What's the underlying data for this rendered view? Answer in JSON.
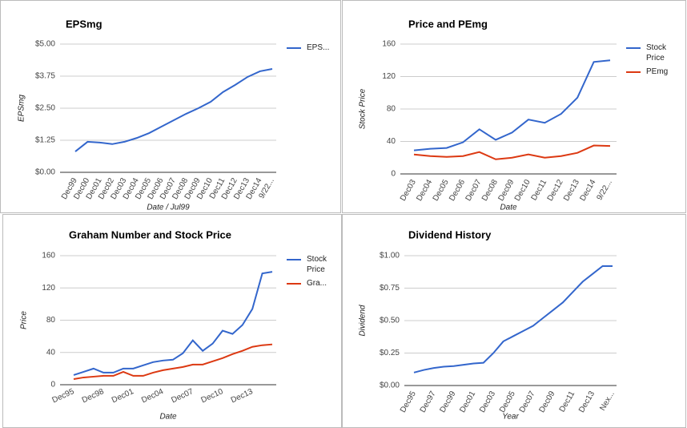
{
  "chart_data": [
    {
      "type": "line",
      "title": "EPSmg",
      "x_label": "Date / Jul99",
      "y_label": "EPSmg",
      "categories": [
        "Dec99",
        "Dec00",
        "Dec01",
        "Dec02",
        "Dec03",
        "Dec04",
        "Dec05",
        "Dec06",
        "Dec07",
        "Dec08",
        "Dec09",
        "Dec10",
        "Dec11",
        "Dec12",
        "Dec13",
        "Dec14",
        "9/22..."
      ],
      "series": [
        {
          "name": "EPS...",
          "color": "#3366cc",
          "values": [
            0.81,
            1.19,
            1.16,
            1.1,
            1.19,
            1.34,
            1.53,
            1.78,
            2.03,
            2.28,
            2.5,
            2.75,
            3.13,
            3.41,
            3.72,
            3.94,
            4.03
          ]
        }
      ],
      "ylim": [
        0,
        5
      ],
      "yticks": [
        {
          "value": 0,
          "label": "$0.00"
        },
        {
          "value": 1.25,
          "label": "$1.25"
        },
        {
          "value": 2.5,
          "label": "$2.50"
        },
        {
          "value": 3.75,
          "label": "$3.75"
        },
        {
          "value": 5,
          "label": "$5.00"
        }
      ],
      "grid": true
    },
    {
      "type": "line",
      "title": "Price and PEmg",
      "x_label": "Date",
      "y_label": "Stock Price",
      "categories": [
        "Dec03",
        "Dec04",
        "Dec05",
        "Dec06",
        "Dec07",
        "Dec08",
        "Dec09",
        "Dec10",
        "Dec11",
        "Dec12",
        "Dec13",
        "Dec14",
        "9/22..."
      ],
      "series": [
        {
          "name": "Stock Price",
          "color": "#3366cc",
          "values": [
            29,
            31,
            32,
            39,
            55,
            42,
            51,
            67,
            63,
            74,
            94,
            138,
            140
          ]
        },
        {
          "name": "PEmg",
          "color": "#dc3912",
          "values": [
            24,
            22,
            21,
            22,
            27,
            18,
            20,
            24,
            20,
            22,
            26,
            35,
            34.5
          ]
        }
      ],
      "ylim": [
        0,
        160
      ],
      "yticks": [
        0,
        40,
        80,
        120,
        160
      ],
      "grid": true
    },
    {
      "type": "line",
      "title": "Graham Number and Stock Price",
      "x_label": "Date",
      "y_label": "Price",
      "categories": [
        "Dec95",
        null,
        null,
        "Dec98",
        null,
        null,
        "Dec01",
        null,
        null,
        "Dec04",
        null,
        null,
        "Dec07",
        null,
        null,
        "Dec10",
        null,
        null,
        "Dec13",
        null,
        null
      ],
      "series": [
        {
          "name": "Stock Price",
          "color": "#3366cc",
          "values": [
            12,
            16,
            20,
            15,
            15,
            20,
            20,
            24,
            28,
            30,
            31,
            39,
            55,
            42,
            51,
            67,
            63,
            74,
            94,
            138,
            140
          ]
        },
        {
          "name": "Gra...",
          "color": "#dc3912",
          "values": [
            7,
            9,
            10,
            11,
            11,
            16,
            11,
            11,
            15,
            18,
            20,
            22,
            25,
            25,
            29,
            33,
            38,
            42,
            47,
            49,
            50
          ]
        }
      ],
      "ylim": [
        0,
        160
      ],
      "yticks": [
        0,
        40,
        80,
        120,
        160
      ],
      "grid": true
    },
    {
      "type": "line",
      "title": "Dividend History",
      "x_label": "Year",
      "y_label": "Dividend",
      "categories": [
        "Dec95",
        null,
        "Dec97",
        null,
        "Dec99",
        null,
        "Dec01",
        null,
        "Dec03",
        null,
        "Dec05",
        null,
        "Dec07",
        null,
        "Dec09",
        null,
        "Dec11",
        null,
        "Dec13",
        null,
        "Nex..."
      ],
      "series": [
        {
          "color": "#3366cc",
          "values": [
            0.1,
            0.12,
            0.135,
            0.145,
            0.15,
            0.16,
            0.17,
            0.175,
            0.25,
            0.34,
            0.38,
            0.42,
            0.46,
            0.52,
            0.58,
            0.64,
            0.72,
            0.8,
            0.86,
            0.92,
            0.92
          ]
        }
      ],
      "ylim": [
        0,
        1
      ],
      "yticks": [
        {
          "value": 0,
          "label": "$0.00"
        },
        {
          "value": 0.25,
          "label": "$0.25"
        },
        {
          "value": 0.5,
          "label": "$0.50"
        },
        {
          "value": 0.75,
          "label": "$0.75"
        },
        {
          "value": 1,
          "label": "$1.00"
        }
      ],
      "grid": true
    }
  ]
}
